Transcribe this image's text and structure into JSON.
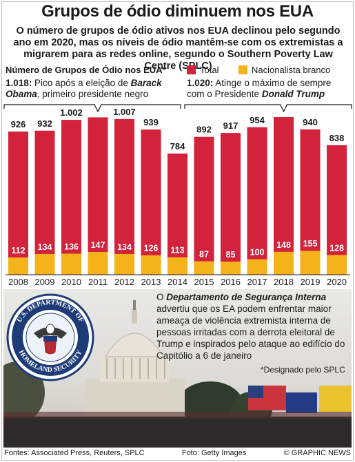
{
  "title": "Grupos de ódio diminuem nos EUA",
  "subtitle": "O número de grupos de ódio ativos nos EUA declinou pelo segundo ano em 2020, mas os níveis de ódio mantêm-se com os extremistas a migrarem para as redes online, segundo o Southern Poverty Law Centre (SPLC)",
  "chart_heading": "Número de Grupos de Ódio nos EUA*",
  "annotations": {
    "a2011_value": "1.018:",
    "a2011_text": "Pico após a eleição de",
    "a2011_name": "Barack Obama",
    "a2011_rest": ", primeiro presidente negro",
    "a2018_value": "1.020:",
    "a2018_text": "Atinge o máximo de sempre com o Presidente",
    "a2018_name": "Donald Trump"
  },
  "capitol": {
    "prefix": "O",
    "agency": "Departamento de Segurança Interna",
    "body": "advertiu que os EA podem enfrentar maior ameaça de violência extremista interna de pessoas irritadas com a derrota eleitoral de Trump e inspirados pelo ataque ao edifício do Capitólio a 6 de janeiro",
    "seal_top": "U.S. DEPARTMENT OF",
    "seal_bottom": "HOMELAND SECURITY"
  },
  "note": "*Designado pelo SPLC",
  "footer": {
    "sources": "Fontes: Associated Press, Reuters, SPLC",
    "photo": "Foto: Getty Images",
    "credit": "© GRAPHIC NEWS"
  },
  "watermark": "GRAPHIC NEWS",
  "colors": {
    "total": "#d2223c",
    "nationalist": "#f4b21b"
  },
  "chart_data": {
    "type": "bar",
    "categories": [
      "2008",
      "2009",
      "2010",
      "2011",
      "2012",
      "2013",
      "2014",
      "2015",
      "2016",
      "2017",
      "2018",
      "2019",
      "2020"
    ],
    "series": [
      {
        "name": "Total",
        "values": [
          926,
          932,
          1002,
          1018,
          1007,
          939,
          784,
          892,
          917,
          954,
          1020,
          940,
          838
        ],
        "labels": [
          "926",
          "932",
          "1.002",
          "",
          "1.007",
          "939",
          "784",
          "892",
          "917",
          "954",
          "",
          "940",
          "838"
        ]
      },
      {
        "name": "Nacionalista branco",
        "values": [
          112,
          134,
          136,
          147,
          134,
          126,
          113,
          87,
          85,
          100,
          148,
          155,
          128
        ],
        "labels": [
          "112",
          "134",
          "136",
          "147",
          "134",
          "126",
          "113",
          "87",
          "85",
          "100",
          "148",
          "155",
          "128"
        ]
      }
    ],
    "title": "Número de Grupos de Ódio nos EUA*",
    "stacking": "overlaid",
    "ylim": [
      0,
      1020
    ],
    "legend": "top-right"
  }
}
